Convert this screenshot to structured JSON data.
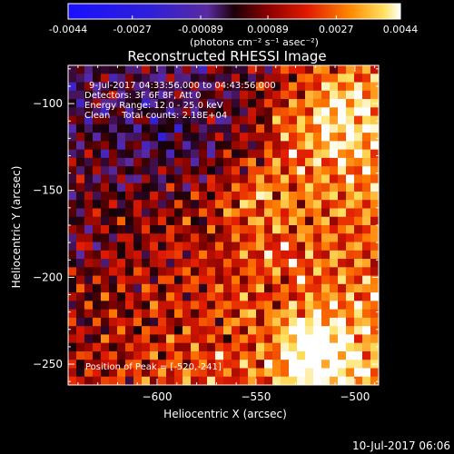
{
  "chart_data": {
    "type": "heatmap",
    "title": "Reconstructed RHESSI Image",
    "xlabel": "Heliocentric X (arcsec)",
    "ylabel": "Heliocentric Y (arcsec)",
    "xlim": [
      -645,
      -488
    ],
    "ylim": [
      -262,
      -78
    ],
    "x_ticks": [
      -600,
      -550,
      -500
    ],
    "y_ticks": [
      -100,
      -150,
      -200,
      -250
    ],
    "colorbar": {
      "ticks": [
        "-0.0044",
        "-0.0027",
        "-0.00089",
        "0.00089",
        "0.0027",
        "0.0044"
      ],
      "unit_label": "(photons cm⁻² s⁻¹ asec⁻²)",
      "range": [
        -0.0044,
        0.0044
      ]
    },
    "annotations": [
      "9-Jul-2017 04:33:56.000 to 04:43:56.000",
      "Detectors: 3F 6F 8F, Att 0",
      "Energy Range: 12.0 - 25.0 keV",
      "Clean    Total counts: 2.18E+04"
    ],
    "peak_label": "Position of Peak = [-520,-241]",
    "peak": {
      "x": -520,
      "y": -241
    }
  },
  "footer": {
    "timestamp": "10-Jul-2017 06:06"
  }
}
